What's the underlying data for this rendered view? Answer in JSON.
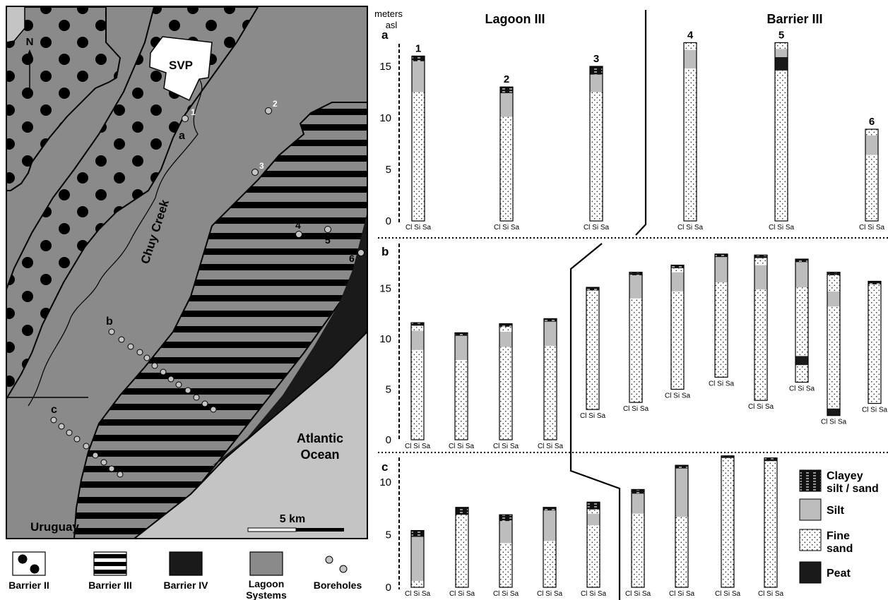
{
  "map": {
    "north": "N",
    "svp": "SVP",
    "creek": "Chuy Creek",
    "ocean": [
      "Atlantic",
      "Ocean"
    ],
    "country": "Uruguay",
    "scale": "5 km",
    "transects": [
      "a",
      "b",
      "c"
    ],
    "boreholes": [
      "1",
      "2",
      "3",
      "4",
      "5",
      "6"
    ]
  },
  "legend_map": [
    {
      "label": [
        "Barrier II"
      ],
      "pattern": "dots"
    },
    {
      "label": [
        "Barrier III"
      ],
      "pattern": "stripes"
    },
    {
      "label": [
        "Barrier IV"
      ],
      "pattern": "black"
    },
    {
      "label": [
        "Lagoon",
        "Systems"
      ],
      "pattern": "gray"
    },
    {
      "label": [
        "Boreholes"
      ],
      "pattern": "circles"
    }
  ],
  "legend_litho": [
    {
      "label": [
        "Clayey",
        "silt / sand"
      ],
      "key": "clay"
    },
    {
      "label": [
        "Silt"
      ],
      "key": "silt"
    },
    {
      "label": [
        "Fine",
        "sand"
      ],
      "key": "sand"
    },
    {
      "label": [
        "Peat"
      ],
      "key": "peat"
    }
  ],
  "columns": {
    "unit": [
      "meters",
      "asl"
    ],
    "panel_labels": [
      "a",
      "b",
      "c"
    ],
    "ticks": [
      "0",
      "5",
      "10",
      "15"
    ],
    "headers": [
      "Lagoon III",
      "Barrier III"
    ],
    "grain_axis": "Cl Si Sa",
    "colors": {
      "silt": "#bdbdbd",
      "peat": "#1a1a1a",
      "lagoon": "#8a8a8a",
      "ocean": "#c4c4c4"
    }
  },
  "cores": [
    {
      "panel": "a",
      "num": "1",
      "top": 16.0,
      "base": 0,
      "layers": [
        {
          "t": "sand",
          "f": 0,
          "to": 12.5
        },
        {
          "t": "silt",
          "f": 12.5,
          "to": 15.5
        },
        {
          "t": "clay",
          "f": 15.5,
          "to": 16.0
        }
      ]
    },
    {
      "panel": "a",
      "num": "2",
      "top": 13.0,
      "base": 0,
      "layers": [
        {
          "t": "sand",
          "f": 0,
          "to": 10.1
        },
        {
          "t": "silt",
          "f": 10.1,
          "to": 12.4
        },
        {
          "t": "clay",
          "f": 12.4,
          "to": 13.0
        }
      ]
    },
    {
      "panel": "a",
      "num": "3",
      "top": 15.0,
      "base": 0,
      "layers": [
        {
          "t": "sand",
          "f": 0,
          "to": 12.5
        },
        {
          "t": "silt",
          "f": 12.5,
          "to": 14.2
        },
        {
          "t": "clay",
          "f": 14.2,
          "to": 15.0
        }
      ]
    },
    {
      "panel": "a",
      "num": "4",
      "top": 17.3,
      "base": 0,
      "layers": [
        {
          "t": "sand",
          "f": 0,
          "to": 14.8
        },
        {
          "t": "silt",
          "f": 14.8,
          "to": 16.6
        },
        {
          "t": "sand",
          "f": 16.6,
          "to": 17.3
        }
      ]
    },
    {
      "panel": "a",
      "num": "5",
      "top": 17.3,
      "base": 0,
      "layers": [
        {
          "t": "sand",
          "f": 0,
          "to": 14.6
        },
        {
          "t": "peat",
          "f": 14.6,
          "to": 15.9
        },
        {
          "t": "silt",
          "f": 15.9,
          "to": 16.7
        },
        {
          "t": "sand",
          "f": 16.7,
          "to": 17.3
        }
      ]
    },
    {
      "panel": "a",
      "num": "6",
      "top": 8.9,
      "base": 0,
      "layers": [
        {
          "t": "sand",
          "f": 0,
          "to": 6.4
        },
        {
          "t": "silt",
          "f": 6.4,
          "to": 8.3
        },
        {
          "t": "sand",
          "f": 8.3,
          "to": 8.9
        }
      ]
    },
    {
      "panel": "b",
      "num": "",
      "top": 11.6,
      "base": 0,
      "layers": [
        {
          "t": "sand",
          "f": 0,
          "to": 8.9
        },
        {
          "t": "silt",
          "f": 8.9,
          "to": 10.8
        },
        {
          "t": "sand",
          "f": 10.8,
          "to": 11.3
        },
        {
          "t": "clay",
          "f": 11.3,
          "to": 11.6
        }
      ]
    },
    {
      "panel": "b",
      "num": "",
      "top": 10.6,
      "base": 0,
      "layers": [
        {
          "t": "sand",
          "f": 0,
          "to": 7.9
        },
        {
          "t": "silt",
          "f": 7.9,
          "to": 10.3
        },
        {
          "t": "clay",
          "f": 10.3,
          "to": 10.6
        }
      ]
    },
    {
      "panel": "b",
      "num": "",
      "top": 11.5,
      "base": 0,
      "layers": [
        {
          "t": "sand",
          "f": 0,
          "to": 9.2
        },
        {
          "t": "silt",
          "f": 9.2,
          "to": 10.7
        },
        {
          "t": "sand",
          "f": 10.7,
          "to": 11.2
        },
        {
          "t": "clay",
          "f": 11.2,
          "to": 11.5
        }
      ]
    },
    {
      "panel": "b",
      "num": "",
      "top": 12.0,
      "base": 0,
      "layers": [
        {
          "t": "sand",
          "f": 0,
          "to": 9.3
        },
        {
          "t": "silt",
          "f": 9.3,
          "to": 11.7
        },
        {
          "t": "clay",
          "f": 11.7,
          "to": 12.0
        }
      ]
    },
    {
      "panel": "b",
      "num": "",
      "top": 15.1,
      "base": 3.0,
      "layers": [
        {
          "t": "sand",
          "f": 3.0,
          "to": 14.8
        },
        {
          "t": "clay",
          "f": 14.8,
          "to": 15.1
        }
      ]
    },
    {
      "panel": "b",
      "num": "",
      "top": 16.6,
      "base": 3.7,
      "layers": [
        {
          "t": "sand",
          "f": 3.7,
          "to": 14.0
        },
        {
          "t": "silt",
          "f": 14.0,
          "to": 16.3
        },
        {
          "t": "clay",
          "f": 16.3,
          "to": 16.6
        }
      ]
    },
    {
      "panel": "b",
      "num": "",
      "top": 17.3,
      "base": 5.0,
      "layers": [
        {
          "t": "sand",
          "f": 5.0,
          "to": 14.7
        },
        {
          "t": "silt",
          "f": 14.7,
          "to": 16.6
        },
        {
          "t": "sand",
          "f": 16.6,
          "to": 17.0
        },
        {
          "t": "clay",
          "f": 17.0,
          "to": 17.3
        }
      ]
    },
    {
      "panel": "b",
      "num": "",
      "top": 18.4,
      "base": 6.2,
      "layers": [
        {
          "t": "sand",
          "f": 6.2,
          "to": 15.6
        },
        {
          "t": "silt",
          "f": 15.6,
          "to": 18.1
        },
        {
          "t": "clay",
          "f": 18.1,
          "to": 18.4
        }
      ]
    },
    {
      "panel": "b",
      "num": "",
      "top": 18.3,
      "base": 3.9,
      "layers": [
        {
          "t": "sand",
          "f": 3.9,
          "to": 14.9
        },
        {
          "t": "silt",
          "f": 14.9,
          "to": 17.3
        },
        {
          "t": "sand",
          "f": 17.3,
          "to": 18.0
        },
        {
          "t": "clay",
          "f": 18.0,
          "to": 18.3
        }
      ]
    },
    {
      "panel": "b",
      "num": "",
      "top": 17.9,
      "base": 5.7,
      "layers": [
        {
          "t": "sand",
          "f": 5.7,
          "to": 7.4
        },
        {
          "t": "peat",
          "f": 7.4,
          "to": 8.3
        },
        {
          "t": "sand",
          "f": 8.3,
          "to": 15.1
        },
        {
          "t": "silt",
          "f": 15.1,
          "to": 17.6
        },
        {
          "t": "clay",
          "f": 17.6,
          "to": 17.9
        }
      ]
    },
    {
      "panel": "b",
      "num": "",
      "top": 16.6,
      "base": 2.4,
      "layers": [
        {
          "t": "peat",
          "f": 2.4,
          "to": 3.1
        },
        {
          "t": "sand",
          "f": 3.1,
          "to": 13.2
        },
        {
          "t": "silt",
          "f": 13.2,
          "to": 14.7
        },
        {
          "t": "sand",
          "f": 14.7,
          "to": 16.3
        },
        {
          "t": "clay",
          "f": 16.3,
          "to": 16.6
        }
      ]
    },
    {
      "panel": "b",
      "num": "",
      "top": 15.7,
      "base": 3.6,
      "layers": [
        {
          "t": "sand",
          "f": 3.6,
          "to": 15.4
        },
        {
          "t": "clay",
          "f": 15.4,
          "to": 15.7
        }
      ]
    },
    {
      "panel": "c",
      "num": "",
      "top": 5.4,
      "base": 0,
      "layers": [
        {
          "t": "sand",
          "f": 0,
          "to": 0.6
        },
        {
          "t": "silt",
          "f": 0.6,
          "to": 4.8
        },
        {
          "t": "clay",
          "f": 4.8,
          "to": 5.4
        }
      ]
    },
    {
      "panel": "c",
      "num": "",
      "top": 7.6,
      "base": 0,
      "layers": [
        {
          "t": "sand",
          "f": 0,
          "to": 6.9
        },
        {
          "t": "clay",
          "f": 6.9,
          "to": 7.6
        }
      ]
    },
    {
      "panel": "c",
      "num": "",
      "top": 6.9,
      "base": 0,
      "layers": [
        {
          "t": "sand",
          "f": 0,
          "to": 4.2
        },
        {
          "t": "silt",
          "f": 4.2,
          "to": 6.3
        },
        {
          "t": "clay",
          "f": 6.3,
          "to": 6.9
        }
      ]
    },
    {
      "panel": "c",
      "num": "",
      "top": 7.6,
      "base": 0,
      "layers": [
        {
          "t": "sand",
          "f": 0,
          "to": 4.4
        },
        {
          "t": "silt",
          "f": 4.4,
          "to": 7.3
        },
        {
          "t": "clay",
          "f": 7.3,
          "to": 7.6
        }
      ]
    },
    {
      "panel": "c",
      "num": "",
      "top": 8.1,
      "base": 0,
      "layers": [
        {
          "t": "sand",
          "f": 0,
          "to": 5.9
        },
        {
          "t": "silt",
          "f": 5.9,
          "to": 7.0
        },
        {
          "t": "sand",
          "f": 7.0,
          "to": 7.4
        },
        {
          "t": "clay",
          "f": 7.4,
          "to": 8.1
        }
      ]
    },
    {
      "panel": "c",
      "num": "",
      "top": 9.3,
      "base": 0,
      "layers": [
        {
          "t": "sand",
          "f": 0,
          "to": 7.0
        },
        {
          "t": "silt",
          "f": 7.0,
          "to": 8.9
        },
        {
          "t": "clay",
          "f": 8.9,
          "to": 9.3
        }
      ]
    },
    {
      "panel": "c",
      "num": "",
      "top": 11.6,
      "base": 0,
      "layers": [
        {
          "t": "sand",
          "f": 0,
          "to": 6.7
        },
        {
          "t": "silt",
          "f": 6.7,
          "to": 11.3
        },
        {
          "t": "clay",
          "f": 11.3,
          "to": 11.6
        }
      ]
    },
    {
      "panel": "c",
      "num": "",
      "top": 12.5,
      "base": 0,
      "layers": [
        {
          "t": "sand",
          "f": 0,
          "to": 12.3
        },
        {
          "t": "clay",
          "f": 12.3,
          "to": 12.5
        }
      ]
    },
    {
      "panel": "c",
      "num": "",
      "top": 12.3,
      "base": 0,
      "layers": [
        {
          "t": "sand",
          "f": 0,
          "to": 12.0
        },
        {
          "t": "clay",
          "f": 12.0,
          "to": 12.3
        }
      ]
    }
  ]
}
